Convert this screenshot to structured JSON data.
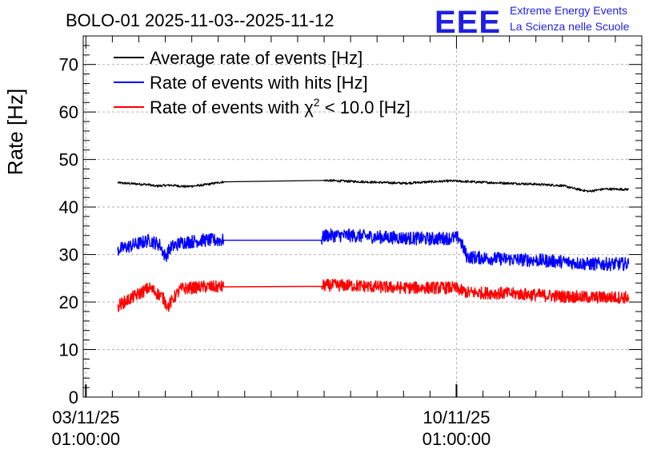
{
  "chart_data": {
    "type": "line",
    "title": "BOLO-01 2025-11-03--2025-11-12",
    "ylabel": "Rate [Hz]",
    "xlabel": "",
    "ylim": [
      0,
      76
    ],
    "y_ticks": [
      0,
      10,
      20,
      30,
      40,
      50,
      60,
      70
    ],
    "y_tick_labels": [
      "0",
      "10",
      "20",
      "30",
      "40",
      "50",
      "60",
      "70"
    ],
    "x_range_days": [
      -0.05,
      10.5
    ],
    "x_tick_positions_days": [
      0,
      7
    ],
    "x_tick_labels": [
      {
        "date": "03/11/25",
        "time": "01:00:00"
      },
      {
        "date": "10/11/25",
        "time": "01:00:00"
      }
    ],
    "grid": true,
    "legend_position": "top-left",
    "series": [
      {
        "name": "Average rate of events [Hz]",
        "color": "#000000",
        "noise": 0.25,
        "points": [
          [
            0.6,
            45.1
          ],
          [
            1.2,
            44.7
          ],
          [
            1.3,
            44.4
          ],
          [
            1.6,
            44.6
          ],
          [
            1.9,
            44.3
          ],
          [
            2.2,
            44.6
          ],
          [
            2.6,
            45.3
          ],
          [
            4.5,
            45.6
          ],
          [
            5.0,
            45.4
          ],
          [
            5.5,
            45.2
          ],
          [
            6.0,
            45.0
          ],
          [
            6.5,
            45.3
          ],
          [
            6.9,
            45.5
          ],
          [
            7.5,
            45.2
          ],
          [
            8.0,
            45.0
          ],
          [
            8.5,
            44.8
          ],
          [
            9.0,
            44.5
          ],
          [
            9.3,
            43.7
          ],
          [
            9.5,
            43.3
          ],
          [
            9.8,
            43.8
          ],
          [
            10.25,
            43.7
          ]
        ]
      },
      {
        "name": "Rate of events with hits [Hz]",
        "color": "#0000ff",
        "noise": 1.4,
        "points": [
          [
            0.6,
            31.0
          ],
          [
            1.2,
            33.0
          ],
          [
            1.4,
            32.0
          ],
          [
            1.5,
            29.5
          ],
          [
            1.6,
            31.5
          ],
          [
            1.8,
            32.5
          ],
          [
            2.2,
            33.0
          ],
          [
            2.6,
            33.0
          ],
          [
            4.45,
            33.0
          ],
          [
            4.5,
            34.0
          ],
          [
            5.0,
            34.0
          ],
          [
            5.5,
            33.7
          ],
          [
            6.0,
            33.5
          ],
          [
            6.5,
            33.3
          ],
          [
            6.95,
            33.5
          ],
          [
            7.05,
            33.5
          ],
          [
            7.2,
            29.5
          ],
          [
            8.0,
            29.0
          ],
          [
            8.5,
            28.8
          ],
          [
            9.0,
            28.5
          ],
          [
            9.5,
            28.0
          ],
          [
            10.25,
            28.0
          ]
        ]
      },
      {
        "name": "Rate of events with χ² < 10.0 [Hz]",
        "color": "#ff0000",
        "noise": 1.3,
        "points": [
          [
            0.6,
            19.2
          ],
          [
            1.2,
            23.0
          ],
          [
            1.45,
            21.0
          ],
          [
            1.55,
            19.0
          ],
          [
            1.7,
            21.5
          ],
          [
            1.8,
            22.8
          ],
          [
            2.2,
            23.2
          ],
          [
            2.6,
            23.2
          ],
          [
            4.45,
            23.3
          ],
          [
            4.5,
            23.5
          ],
          [
            5.0,
            23.5
          ],
          [
            5.5,
            23.2
          ],
          [
            6.0,
            23.0
          ],
          [
            6.5,
            23.0
          ],
          [
            6.95,
            23.0
          ],
          [
            7.2,
            22.0
          ],
          [
            8.0,
            21.8
          ],
          [
            8.5,
            21.5
          ],
          [
            9.0,
            21.2
          ],
          [
            9.5,
            21.0
          ],
          [
            10.25,
            21.0
          ]
        ]
      }
    ]
  },
  "logo": {
    "mark": "EEE",
    "line1": "Extreme Energy Events",
    "line2": "La Scienza nelle Scuole",
    "color": "#1f1fe0"
  },
  "legend": {
    "items": [
      {
        "label": "Average rate of events [Hz]",
        "color": "#000000"
      },
      {
        "label": "Rate of events with hits [Hz]",
        "color": "#0000ff"
      },
      {
        "label_prefix": "Rate of events with ",
        "label_symbol": "χ",
        "label_sup": "2",
        "label_suffix": " < 10.0 [Hz]",
        "color": "#ff0000"
      }
    ]
  }
}
